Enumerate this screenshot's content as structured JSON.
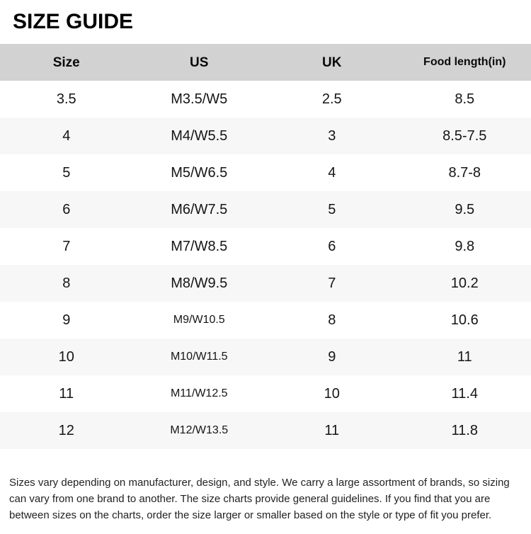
{
  "page": {
    "title": "SIZE GUIDE"
  },
  "table": {
    "headers": [
      "Size",
      "US",
      "UK",
      "Food length(in)"
    ],
    "rows": [
      [
        "3.5",
        "M3.5/W5",
        "2.5",
        "8.5"
      ],
      [
        "4",
        "M4/W5.5",
        "3",
        "8.5-7.5"
      ],
      [
        "5",
        "M5/W6.5",
        "4",
        "8.7-8"
      ],
      [
        "6",
        "M6/W7.5",
        "5",
        "9.5"
      ],
      [
        "7",
        "M7/W8.5",
        "6",
        "9.8"
      ],
      [
        "8",
        "M8/W9.5",
        "7",
        "10.2"
      ],
      [
        "9",
        "M9/W10.5",
        "8",
        "10.6"
      ],
      [
        "10",
        "M10/W11.5",
        "9",
        "11"
      ],
      [
        "11",
        "M11/W12.5",
        "10",
        "11.4"
      ],
      [
        "12",
        "M12/W13.5",
        "11",
        "11.8"
      ]
    ]
  },
  "footer": {
    "lines": [
      "Sizes vary depending on manufacturer, design, and style. We carry a large assortment of brands, so sizing",
      "can vary from one brand to another. The size charts provide general guidelines. If you find that you are",
      "between sizes on the charts, order the size larger or smaller based on the style or type of fit you prefer."
    ]
  },
  "colors": {
    "header_bg": "#d2d2d2",
    "alt_row_bg": "#f7f7f7",
    "title_text": "#000000",
    "body_text": "#151515"
  }
}
